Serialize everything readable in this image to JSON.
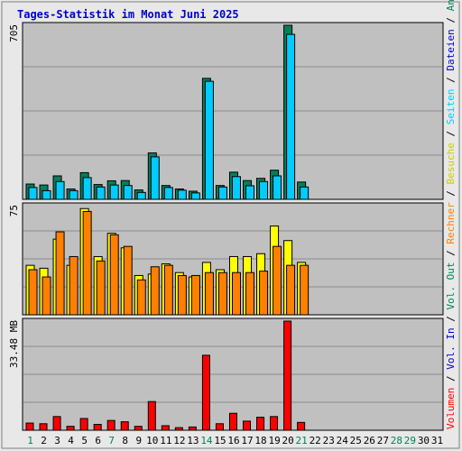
{
  "title": "Tages-Statistik im Monat Juni 2025",
  "colors": {
    "background": "#e8e8e8",
    "plot_background": "#c0c0c0",
    "grid": "#8c8c8c",
    "title": "#0000cc",
    "hits": "#00805c",
    "files": "#00ccff",
    "sites": "#ffff00",
    "visits": "#ff8000",
    "kbytes": "#ff0000",
    "weekend_label": "#00805c",
    "weekday_label": "#000000",
    "separator": "#000000"
  },
  "right_labels": {
    "top": [
      {
        "text": "Anfragen",
        "color": "#00805c"
      },
      {
        "text": " / ",
        "color": "#000000"
      },
      {
        "text": "Dateien",
        "color": "#0000cc"
      },
      {
        "text": " / ",
        "color": "#000000"
      },
      {
        "text": "Seiten",
        "color": "#00ccff"
      },
      {
        "text": " / ",
        "color": "#000000"
      },
      {
        "text": "Besuche",
        "color": "#cccc00"
      },
      {
        "text": " / ",
        "color": "#000000"
      },
      {
        "text": "Rechner",
        "color": "#ff8000"
      },
      {
        "text": " / ",
        "color": "#000000"
      },
      {
        "text": "Vol. Out",
        "color": "#00805c"
      },
      {
        "text": " / ",
        "color": "#000000"
      },
      {
        "text": "Vol. In",
        "color": "#0000cc"
      },
      {
        "text": " / ",
        "color": "#000000"
      },
      {
        "text": "Volumen",
        "color": "#ff0000"
      }
    ]
  },
  "chart_data": [
    {
      "type": "bar",
      "panel": "hits-files",
      "ymax_label": "705",
      "ylim": [
        0,
        705
      ],
      "grid": true,
      "categories": [
        "1",
        "2",
        "3",
        "4",
        "5",
        "6",
        "7",
        "8",
        "9",
        "10",
        "11",
        "12",
        "13",
        "14",
        "15",
        "16",
        "17",
        "18",
        "19",
        "20",
        "21",
        "22",
        "23",
        "24",
        "25",
        "26",
        "27",
        "28",
        "29",
        "30",
        "31"
      ],
      "series": [
        {
          "name": "Anfragen",
          "color": "#00805c",
          "values": [
            62,
            58,
            95,
            42,
            108,
            60,
            75,
            76,
            38,
            188,
            56,
            42,
            33,
            490,
            56,
            110,
            76,
            85,
            118,
            705,
            70,
            0,
            0,
            0,
            0,
            0,
            0,
            0,
            0,
            0,
            0
          ]
        },
        {
          "name": "Dateien",
          "color": "#00ccff",
          "values": [
            48,
            35,
            72,
            35,
            88,
            50,
            58,
            56,
            28,
            172,
            48,
            37,
            26,
            478,
            50,
            92,
            55,
            72,
            95,
            668,
            50,
            0,
            0,
            0,
            0,
            0,
            0,
            0,
            0,
            0,
            0
          ]
        }
      ]
    },
    {
      "type": "bar",
      "panel": "sites-visits",
      "ymax_label": "75",
      "ylim": [
        0,
        75
      ],
      "grid": true,
      "categories": [
        "1",
        "2",
        "3",
        "4",
        "5",
        "6",
        "7",
        "8",
        "9",
        "10",
        "11",
        "12",
        "13",
        "14",
        "15",
        "16",
        "17",
        "18",
        "19",
        "20",
        "21",
        "22",
        "23",
        "24",
        "25",
        "26",
        "27",
        "28",
        "29",
        "30",
        "31"
      ],
      "series": [
        {
          "name": "Besuche",
          "color": "#ffff00",
          "values": [
            34,
            32,
            52,
            34,
            73,
            40,
            56,
            46,
            27,
            28,
            35,
            29,
            26,
            36,
            31,
            40,
            40,
            42,
            61,
            51,
            36,
            0,
            0,
            0,
            0,
            0,
            0,
            0,
            0,
            0,
            0
          ]
        },
        {
          "name": "Rechner",
          "color": "#ff8000",
          "values": [
            31,
            26,
            57,
            40,
            71,
            37,
            55,
            47,
            24,
            33,
            34,
            27,
            27,
            29,
            29,
            29,
            29,
            30,
            47,
            34,
            34,
            0,
            0,
            0,
            0,
            0,
            0,
            0,
            0,
            0,
            0
          ]
        }
      ]
    },
    {
      "type": "bar",
      "panel": "volume",
      "ymax_label": "33.48 MB",
      "ylim": [
        0,
        33.48
      ],
      "grid": true,
      "categories": [
        "1",
        "2",
        "3",
        "4",
        "5",
        "6",
        "7",
        "8",
        "9",
        "10",
        "11",
        "12",
        "13",
        "14",
        "15",
        "16",
        "17",
        "18",
        "19",
        "20",
        "21",
        "22",
        "23",
        "24",
        "25",
        "26",
        "27",
        "28",
        "29",
        "30",
        "31"
      ],
      "series": [
        {
          "name": "Volumen",
          "color": "#ff0000",
          "values": [
            2.2,
            2.0,
            4.2,
            1.2,
            3.6,
            1.8,
            3.0,
            2.6,
            1.2,
            8.8,
            1.4,
            0.8,
            1.0,
            23.0,
            2.0,
            5.2,
            2.8,
            4.0,
            4.2,
            33.48,
            2.4,
            0,
            0,
            0,
            0,
            0,
            0,
            0,
            0,
            0,
            0
          ]
        }
      ]
    }
  ],
  "x_axis": {
    "labels": [
      "1",
      "2",
      "3",
      "4",
      "5",
      "6",
      "7",
      "8",
      "9",
      "10",
      "11",
      "12",
      "13",
      "14",
      "15",
      "16",
      "17",
      "18",
      "19",
      "20",
      "21",
      "22",
      "23",
      "24",
      "25",
      "26",
      "27",
      "28",
      "29",
      "30",
      "31"
    ],
    "weekend": [
      1,
      7,
      14,
      21,
      28,
      29
    ]
  }
}
